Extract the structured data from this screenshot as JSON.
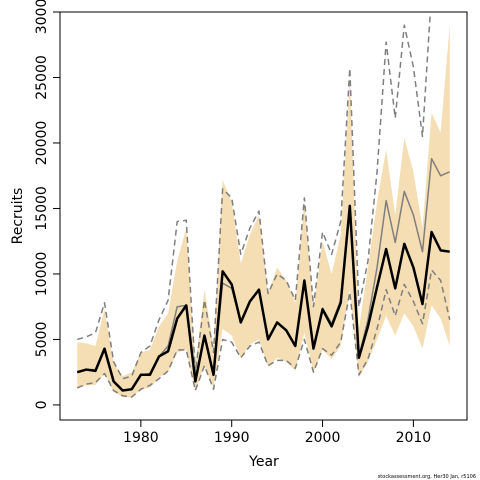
{
  "chart_data": {
    "type": "line",
    "xlabel": "Year",
    "ylabel": "Recruits",
    "footnote": "stockassessment.org, Her30 Jan, r5106",
    "x": [
      1973,
      1974,
      1975,
      1976,
      1977,
      1978,
      1979,
      1980,
      1981,
      1982,
      1983,
      1984,
      1985,
      1986,
      1987,
      1988,
      1989,
      1990,
      1991,
      1992,
      1993,
      1994,
      1995,
      1996,
      1997,
      1998,
      1999,
      2000,
      2001,
      2002,
      2003,
      2004,
      2005,
      2006,
      2007,
      2008,
      2009,
      2010,
      2011,
      2012,
      2013,
      2014
    ],
    "xlim": [
      1971.1,
      2015.9
    ],
    "xticks": [
      1980,
      1990,
      2000,
      2010
    ],
    "ylim": [
      -1150,
      30000
    ],
    "yticks": [
      0,
      5000,
      10000,
      15000,
      20000,
      25000,
      30000
    ],
    "band": {
      "color": "#f5deb3",
      "upper": [
        4800,
        4700,
        4500,
        7300,
        3200,
        2200,
        2500,
        4000,
        4200,
        6000,
        7000,
        11000,
        13500,
        3000,
        8800,
        4500,
        17200,
        15500,
        10800,
        13000,
        14500,
        8500,
        10500,
        9500,
        7800,
        15500,
        7300,
        12500,
        10000,
        13000,
        25000,
        5800,
        10500,
        15500,
        19500,
        14500,
        20400,
        17800,
        13500,
        22300,
        20800,
        29000
      ],
      "lower": [
        1300,
        1500,
        1500,
        2400,
        1000,
        600,
        600,
        1200,
        1300,
        2100,
        2500,
        4000,
        4200,
        1000,
        3000,
        1300,
        5800,
        5300,
        3600,
        4600,
        5000,
        2900,
        3600,
        3300,
        2600,
        5500,
        2500,
        4200,
        3500,
        4500,
        8800,
        2100,
        3300,
        5000,
        6800,
        5300,
        7000,
        6000,
        4300,
        7600,
        6600,
        4500
      ]
    },
    "series": [
      {
        "color": "#7f7f7f",
        "dashed": true,
        "values": [
          5000,
          5200,
          5500,
          7800,
          3300,
          2000,
          2200,
          4000,
          4500,
          6500,
          8000,
          14000,
          14100,
          2500,
          8000,
          4000,
          16500,
          15800,
          11500,
          13500,
          14800,
          8500,
          10000,
          9500,
          8000,
          15800,
          7500,
          13200,
          11500,
          14000,
          25700,
          7500,
          11000,
          17800,
          27700,
          21900,
          29000,
          25800,
          20500,
          31500,
          null,
          null
        ]
      },
      {
        "color": "#7f7f7f",
        "dashed": true,
        "values": [
          1300,
          1600,
          1700,
          2400,
          1100,
          700,
          600,
          1200,
          1500,
          2000,
          2600,
          4200,
          4200,
          1100,
          3000,
          1200,
          5000,
          4800,
          3600,
          4500,
          4800,
          3000,
          3400,
          3400,
          2800,
          5000,
          2500,
          4300,
          3800,
          4800,
          8600,
          2300,
          3500,
          5800,
          8800,
          6800,
          9200,
          7900,
          6200,
          10300,
          9500,
          6500
        ]
      },
      {
        "color": "#7f7f7f",
        "dashed": false,
        "values": [
          2500,
          2700,
          2700,
          4300,
          1800,
          1100,
          1200,
          2300,
          2400,
          3700,
          4500,
          7500,
          7600,
          1800,
          5200,
          2300,
          9300,
          8900,
          6300,
          7900,
          8800,
          5000,
          6300,
          5700,
          4500,
          9500,
          4300,
          7400,
          6200,
          8000,
          15200,
          3700,
          6500,
          10500,
          15600,
          12400,
          16300,
          14500,
          11700,
          18800,
          17500,
          17800
        ]
      },
      {
        "color": "#000000",
        "dashed": false,
        "values": [
          2500,
          2700,
          2600,
          4300,
          1800,
          1100,
          1200,
          2300,
          2300,
          3700,
          4100,
          6600,
          7600,
          1800,
          5300,
          2300,
          10200,
          9200,
          6300,
          7900,
          8800,
          5000,
          6300,
          5700,
          4500,
          9500,
          4300,
          7300,
          6000,
          7800,
          15200,
          3600,
          6000,
          9000,
          11900,
          8900,
          12300,
          10500,
          7700,
          13200,
          11800,
          11700
        ]
      }
    ]
  }
}
